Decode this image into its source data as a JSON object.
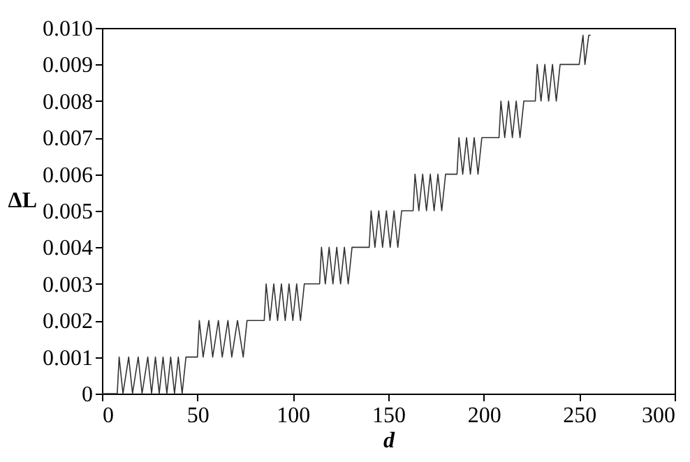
{
  "chart_data": {
    "type": "line",
    "xlabel": "d",
    "ylabel": "ΔL",
    "x": [
      0,
      8,
      9,
      11,
      14,
      16,
      19,
      21,
      24,
      26,
      28,
      30,
      32,
      34,
      36,
      38,
      40,
      42,
      44,
      50,
      51,
      53,
      56,
      58,
      61,
      63,
      66,
      68,
      71,
      74,
      76,
      85,
      86,
      88,
      90,
      92,
      94,
      96,
      98,
      100,
      102,
      104,
      106,
      114,
      115,
      117,
      119,
      121,
      123,
      125,
      127,
      129,
      131,
      140,
      141,
      143,
      145,
      147,
      149,
      151,
      153,
      155,
      157,
      163,
      164,
      166,
      168,
      170,
      172,
      174,
      176,
      178,
      180,
      186,
      187,
      189,
      191,
      193,
      195,
      197,
      199,
      208,
      209,
      211,
      213,
      215,
      217,
      219,
      221,
      227,
      228,
      230,
      232,
      234,
      236,
      238,
      240,
      250,
      252,
      253,
      255,
      256
    ],
    "series": [
      {
        "color": "#333333",
        "values": [
          0,
          0,
          0.001,
          0,
          0.001,
          0,
          0.001,
          0,
          0.001,
          0,
          0.001,
          0,
          0.001,
          0,
          0.001,
          0,
          0.001,
          0,
          0.001,
          0.001,
          0.002,
          0.001,
          0.002,
          0.001,
          0.002,
          0.001,
          0.002,
          0.001,
          0.002,
          0.001,
          0.002,
          0.002,
          0.003,
          0.002,
          0.003,
          0.002,
          0.003,
          0.002,
          0.003,
          0.002,
          0.003,
          0.002,
          0.003,
          0.003,
          0.004,
          0.003,
          0.004,
          0.003,
          0.004,
          0.003,
          0.004,
          0.003,
          0.004,
          0.004,
          0.005,
          0.004,
          0.005,
          0.004,
          0.005,
          0.004,
          0.005,
          0.004,
          0.005,
          0.005,
          0.006,
          0.005,
          0.006,
          0.005,
          0.006,
          0.005,
          0.006,
          0.005,
          0.006,
          0.006,
          0.007,
          0.006,
          0.007,
          0.006,
          0.007,
          0.006,
          0.007,
          0.007,
          0.008,
          0.007,
          0.008,
          0.007,
          0.008,
          0.007,
          0.008,
          0.008,
          0.009,
          0.008,
          0.009,
          0.008,
          0.009,
          0.008,
          0.009,
          0.009,
          0.0098,
          0.009,
          0.0098,
          0.0098
        ]
      }
    ],
    "xlim": [
      0,
      300
    ],
    "xticks": [
      0,
      50,
      100,
      150,
      200,
      250,
      300
    ],
    "ylim": [
      0,
      0.01
    ],
    "yticks": [
      0,
      0.001,
      0.002,
      0.003,
      0.004,
      0.005,
      0.006,
      0.007,
      0.008,
      0.009,
      {
        "value": 0.01,
        "label": "0.010"
      }
    ],
    "grid": false,
    "marker": "none",
    "line_style": "solid"
  }
}
